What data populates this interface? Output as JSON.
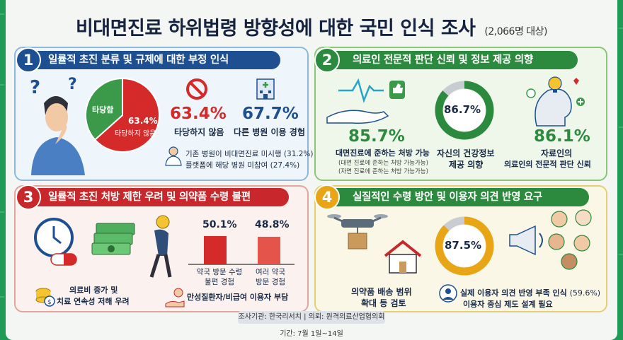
{
  "title": "비대면진료 하위법령 방향성에 대한 국민 인식 조사",
  "subtitle": "(2,066명 대상)",
  "sections": [
    {
      "number": "1",
      "heading": "일률적 초진 분류 및 규제에 대한 부정 인식",
      "pie_label_a": "타당함",
      "pie_label_b_pct": "63.4%",
      "pie_label_b": "타당하지 않음",
      "stat_a_value": "63.4%",
      "stat_a_label": "타당하지 않음",
      "stat_b_value": "67.7%",
      "stat_b_label": "다른 병원 이용 경험",
      "note_1": "기존 병원이 비대면진료 미시행 (31.2%)",
      "note_2": "플랫폼에 해당 병원 미참여 (27.4%)"
    },
    {
      "number": "2",
      "heading": "의료인 전문적 판단 신뢰 및 정보 제공 의향",
      "stat_a_value": "85.7%",
      "stat_a_label": "대면진료에 준하는 처방 가능",
      "stat_a_note_1": "(대면 진료에 준하는 처방 가능가능)",
      "stat_a_note_2": "(자면 진료에 준하는 처방 가능가능)",
      "donut_value": "86.7%",
      "donut_label_1": "자신의 건강정보",
      "donut_label_2": "제공 의향",
      "stat_c_value": "86.1%",
      "stat_c_label_1": "자료인의",
      "stat_c_label_2": "의료인의 전문적 판단 신뢰"
    },
    {
      "number": "3",
      "heading": "일률적 초진 처방 제한 우려 및 의약품 수령 불편",
      "bar_a_value": "50.1%",
      "bar_a_label_1": "약국 방문 수령",
      "bar_a_label_2": "불편 경험",
      "bar_b_value": "48.8%",
      "bar_b_label_1": "여러 약국",
      "bar_b_label_2": "방문 경험",
      "note_1": "의료비 증가 및",
      "note_2": "치료 연속성 저해 우려",
      "note_3": "만성질환자/비급여 이용자 부담"
    },
    {
      "number": "4",
      "heading": "실질적인 수령 방안 및 이용자 의견 반영 요구",
      "label_1": "의약품 배송 범위",
      "label_2": "확대 등 검토",
      "donut_value": "87.5%",
      "note_1": "실제 이용자 의견 반영 부족 인식",
      "note_1_pct": "(59.6%)",
      "note_2": "이용자 중심 제도 설계 필요"
    }
  ],
  "chart_data": [
    {
      "type": "pie",
      "labels": [
        "타당하지 않음",
        "타당함"
      ],
      "values": [
        63.4,
        36.6
      ]
    },
    {
      "type": "bar",
      "categories": [
        "약국 방문 수령 불편 경험",
        "여러 약국 방문 경험"
      ],
      "values": [
        50.1,
        48.8
      ]
    },
    {
      "type": "pie",
      "labels": [
        "자신의 건강정보 제공 의향"
      ],
      "values": [
        86.7
      ]
    },
    {
      "type": "pie",
      "labels": [
        "이용자 의견"
      ],
      "values": [
        87.5
      ]
    }
  ],
  "footer": {
    "org": "조사기관: 한국리서치 | 의뢰: 원격의료산업협의회",
    "period": "기간: 7월 1일~14일"
  },
  "colors": {
    "navy": "#1d4f91",
    "green": "#2b8a3e",
    "red": "#c8282b",
    "gold": "#e8a515",
    "pie_red": "#d42a2a",
    "pie_green": "#3a9a4a"
  }
}
